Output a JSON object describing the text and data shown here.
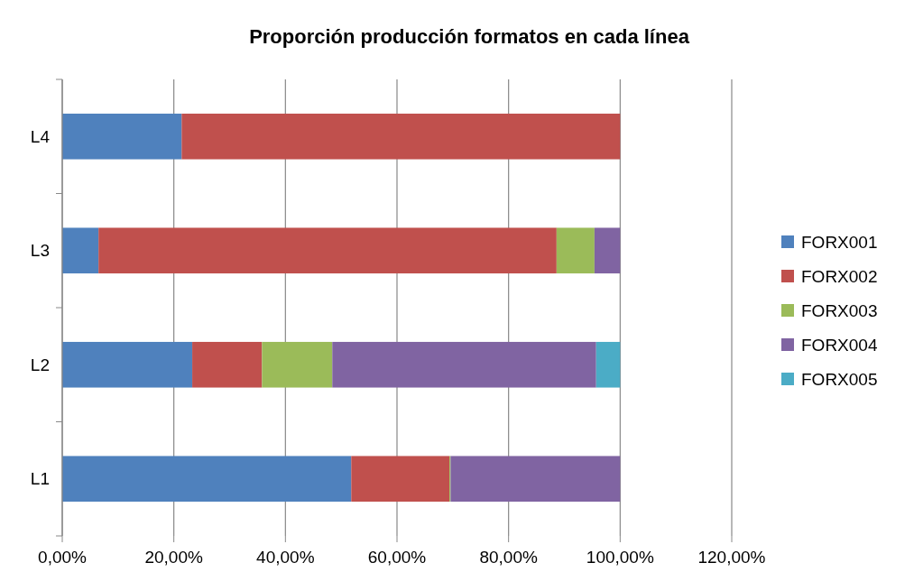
{
  "chart_data": {
    "type": "bar",
    "title": "Proporción producción formatos en cada línea",
    "orientation": "horizontal",
    "stacked": true,
    "categories": [
      "L4",
      "L3",
      "L2",
      "L1"
    ],
    "series": [
      {
        "name": "FORX001",
        "color": "#4f81bd",
        "values": [
          21.4,
          6.5,
          23.3,
          51.8
        ]
      },
      {
        "name": "FORX002",
        "color": "#c0504d",
        "values": [
          78.6,
          82.1,
          12.5,
          17.6
        ]
      },
      {
        "name": "FORX003",
        "color": "#9bbb59",
        "values": [
          null,
          6.8,
          12.6,
          0.2
        ]
      },
      {
        "name": "FORX004",
        "color": "#8064a2",
        "values": [
          null,
          4.6,
          47.3,
          30.4
        ]
      },
      {
        "name": "FORX005",
        "color": "#4bacc6",
        "values": [
          null,
          null,
          4.3,
          null
        ]
      }
    ],
    "xlim": [
      0,
      120
    ],
    "xticks": [
      {
        "value": 0,
        "label": "0,00%"
      },
      {
        "value": 20,
        "label": "20,00%"
      },
      {
        "value": 40,
        "label": "40,00%"
      },
      {
        "value": 60,
        "label": "60,00%"
      },
      {
        "value": 80,
        "label": "80,00%"
      },
      {
        "value": 100,
        "label": "100,00%"
      },
      {
        "value": 120,
        "label": "120,00%"
      }
    ],
    "grid": "x",
    "legend": "right"
  }
}
